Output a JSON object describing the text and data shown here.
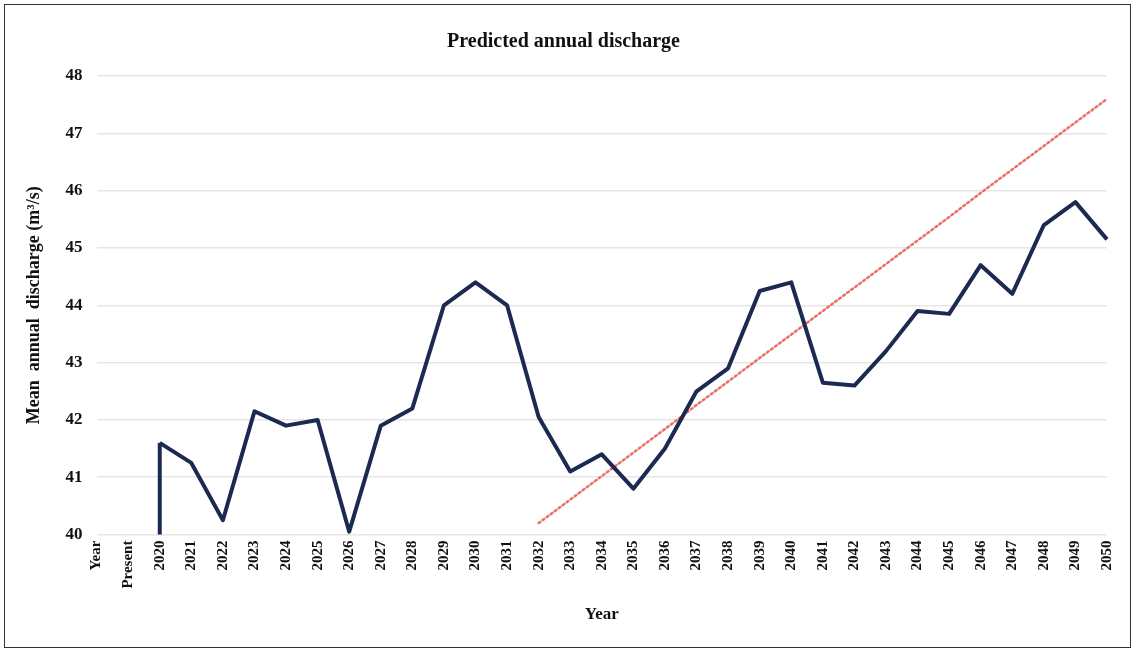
{
  "chart_data": {
    "type": "line",
    "title": "Predicted annual discharge",
    "xlabel": "Year",
    "ylabel": "Mean  annual  discharge (m³/s)",
    "categories": [
      "Year",
      "Present",
      "2020",
      "2021",
      "2022",
      "2023",
      "2024",
      "2025",
      "2026",
      "2027",
      "2028",
      "2029",
      "2030",
      "2031",
      "2032",
      "2033",
      "2034",
      "2035",
      "2036",
      "2037",
      "2038",
      "2039",
      "2040",
      "2041",
      "2042",
      "2043",
      "2044",
      "2045",
      "2046",
      "2047",
      "2048",
      "2049",
      "2050"
    ],
    "series": [
      {
        "color": "#1c2951",
        "values": [
          null,
          null,
          41.6,
          41.25,
          40.25,
          42.15,
          41.9,
          42.0,
          40.05,
          41.9,
          42.2,
          44.0,
          44.4,
          44.0,
          42.05,
          41.1,
          41.4,
          40.8,
          41.5,
          42.5,
          42.9,
          44.25,
          44.4,
          42.65,
          42.6,
          43.2,
          43.9,
          43.85,
          44.7,
          44.2,
          45.4,
          45.8,
          45.15
        ]
      },
      {
        "color": "#e8706a",
        "line_style": "dotted",
        "values": [
          null,
          null,
          null,
          null,
          null,
          null,
          null,
          null,
          null,
          null,
          null,
          null,
          null,
          null,
          40.2,
          40.61,
          41.02,
          41.43,
          41.84,
          42.26,
          42.67,
          43.08,
          43.49,
          43.9,
          44.31,
          44.72,
          45.13,
          45.54,
          45.96,
          46.37,
          46.78,
          47.19,
          47.6
        ]
      }
    ],
    "ylim": [
      40,
      48
    ],
    "yticks": [
      40,
      41,
      42,
      43,
      44,
      45,
      46,
      47,
      48
    ],
    "grid": "y",
    "legend": false,
    "marker": "none",
    "line_style": "solid"
  }
}
